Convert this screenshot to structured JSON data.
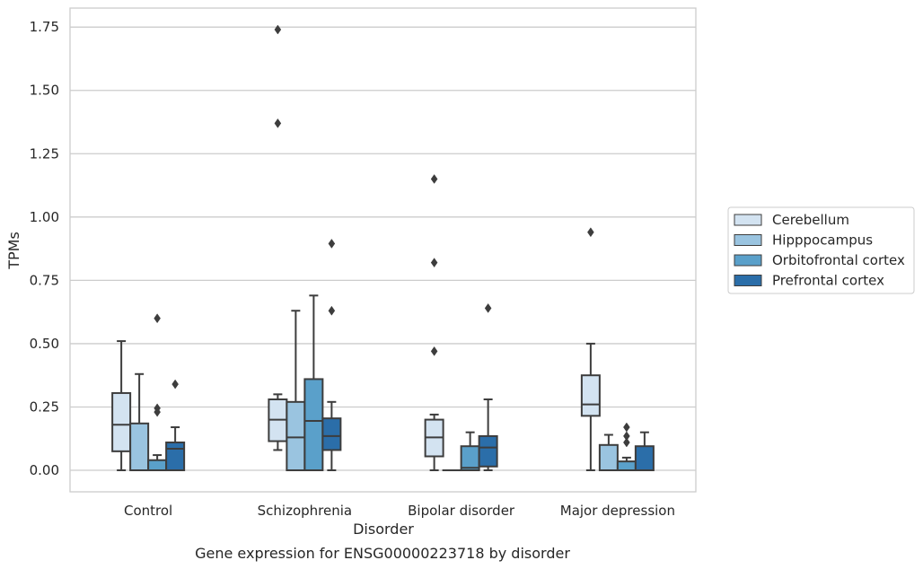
{
  "chart_data": {
    "type": "box",
    "title": "",
    "caption": "Gene expression for ENSG00000223718 by disorder",
    "xlabel": "Disorder",
    "ylabel": "TPMs",
    "ylim": [
      -0.085,
      1.825
    ],
    "yticks": [
      "0.00",
      "0.25",
      "0.50",
      "0.75",
      "1.00",
      "1.25",
      "1.50",
      "1.75"
    ],
    "grid": "horizontal",
    "legend_position": "right",
    "categories": [
      "Control",
      "Schizophrenia",
      "Bipolar disorder",
      "Major depression"
    ],
    "series": [
      {
        "name": "Cerebellum",
        "color": "#d3e3f1",
        "boxes": [
          {
            "whislo": 0.0,
            "q1": 0.075,
            "med": 0.18,
            "q3": 0.305,
            "whishi": 0.51,
            "fliers": []
          },
          {
            "whislo": 0.08,
            "q1": 0.115,
            "med": 0.2,
            "q3": 0.28,
            "whishi": 0.3,
            "fliers": [
              1.74,
              1.37
            ]
          },
          {
            "whislo": 0.0,
            "q1": 0.055,
            "med": 0.13,
            "q3": 0.2,
            "whishi": 0.22,
            "fliers": [
              1.15,
              0.82,
              0.47
            ]
          },
          {
            "whislo": 0.0,
            "q1": 0.215,
            "med": 0.26,
            "q3": 0.375,
            "whishi": 0.5,
            "fliers": [
              0.94
            ]
          }
        ]
      },
      {
        "name": "Hipppocampus",
        "color": "#9ac4e0",
        "boxes": [
          {
            "whislo": 0.0,
            "q1": 0.0,
            "med": 0.0,
            "q3": 0.185,
            "whishi": 0.38,
            "fliers": []
          },
          {
            "whislo": 0.0,
            "q1": 0.0,
            "med": 0.13,
            "q3": 0.27,
            "whishi": 0.63,
            "fliers": []
          },
          {
            "whislo": 0.0,
            "q1": 0.0,
            "med": 0.0,
            "q3": 0.0,
            "whishi": 0.0,
            "fliers": []
          },
          {
            "whislo": 0.0,
            "q1": 0.0,
            "med": 0.0,
            "q3": 0.1,
            "whishi": 0.14,
            "fliers": []
          }
        ]
      },
      {
        "name": "Orbitofrontal cortex",
        "color": "#5aa0ca",
        "boxes": [
          {
            "whislo": 0.0,
            "q1": 0.0,
            "med": 0.0,
            "q3": 0.04,
            "whishi": 0.06,
            "fliers": [
              0.6,
              0.245,
              0.23
            ]
          },
          {
            "whislo": 0.0,
            "q1": 0.0,
            "med": 0.195,
            "q3": 0.36,
            "whishi": 0.69,
            "fliers": []
          },
          {
            "whislo": 0.0,
            "q1": 0.0,
            "med": 0.01,
            "q3": 0.095,
            "whishi": 0.15,
            "fliers": []
          },
          {
            "whislo": 0.0,
            "q1": 0.0,
            "med": 0.0,
            "q3": 0.035,
            "whishi": 0.05,
            "fliers": [
              0.17,
              0.135,
              0.11
            ]
          }
        ]
      },
      {
        "name": "Prefrontal cortex",
        "color": "#2b6ea9",
        "boxes": [
          {
            "whislo": 0.0,
            "q1": 0.0,
            "med": 0.085,
            "q3": 0.11,
            "whishi": 0.17,
            "fliers": [
              0.34
            ]
          },
          {
            "whislo": 0.0,
            "q1": 0.08,
            "med": 0.135,
            "q3": 0.205,
            "whishi": 0.27,
            "fliers": [
              0.895,
              0.63
            ]
          },
          {
            "whislo": 0.0,
            "q1": 0.015,
            "med": 0.09,
            "q3": 0.135,
            "whishi": 0.28,
            "fliers": [
              0.64
            ]
          },
          {
            "whislo": 0.0,
            "q1": 0.0,
            "med": 0.0,
            "q3": 0.095,
            "whishi": 0.15,
            "fliers": []
          }
        ]
      }
    ]
  }
}
